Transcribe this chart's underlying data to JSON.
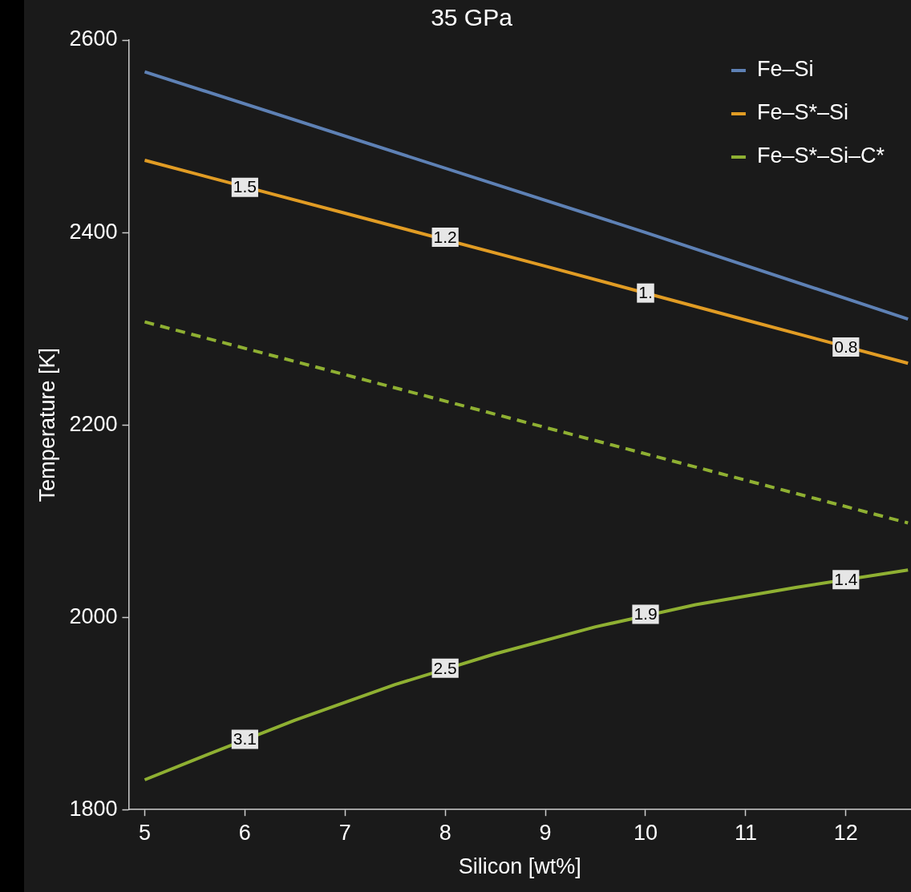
{
  "chart_data": {
    "type": "line",
    "title": "35 GPa",
    "xlabel": "Silicon [wt%]",
    "ylabel": "Temperature [K]",
    "xlim": [
      4.84,
      12.65
    ],
    "xticks": [
      5,
      6,
      7,
      8,
      9,
      10,
      11,
      12
    ],
    "ylim": [
      1800,
      2600
    ],
    "yticks": [
      1800,
      2000,
      2200,
      2400,
      2600
    ],
    "legend": "top right",
    "grid": false,
    "series": [
      {
        "name": "Fe–Si",
        "color": "#5e81b5",
        "x": [
          5,
          10,
          12.62
        ],
        "values": [
          2567,
          2400,
          2310
        ]
      },
      {
        "name": "Fe–S*–Si",
        "color": "#e19c24",
        "x": [
          5,
          7,
          9,
          11,
          12.62
        ],
        "values": [
          2475,
          2420,
          2365,
          2309,
          2264
        ]
      },
      {
        "color": "#8fb032",
        "line_style": "dashed",
        "x": [
          5,
          12.62
        ],
        "values": [
          2307,
          2098
        ]
      },
      {
        "name": "Fe–S*–Si–C*",
        "color": "#8fb032",
        "x": [
          5,
          5.5,
          6.5,
          7.5,
          8.5,
          9.5,
          10.5,
          11.5,
          12.62
        ],
        "values": [
          1831,
          1852,
          1893,
          1930,
          1962,
          1990,
          2013,
          2031,
          2049
        ]
      }
    ],
    "annotations": [
      {
        "text": "1.5",
        "x": 6,
        "y": 2447
      },
      {
        "text": "1.2",
        "x": 8,
        "y": 2395
      },
      {
        "text": "1.",
        "x": 10,
        "y": 2337
      },
      {
        "text": "0.8",
        "x": 12,
        "y": 2281
      },
      {
        "text": "3.1",
        "x": 6,
        "y": 1873
      },
      {
        "text": "2.5",
        "x": 8,
        "y": 1947
      },
      {
        "text": "1.9",
        "x": 10,
        "y": 2003
      },
      {
        "text": "1.4",
        "x": 12,
        "y": 2039
      }
    ]
  }
}
